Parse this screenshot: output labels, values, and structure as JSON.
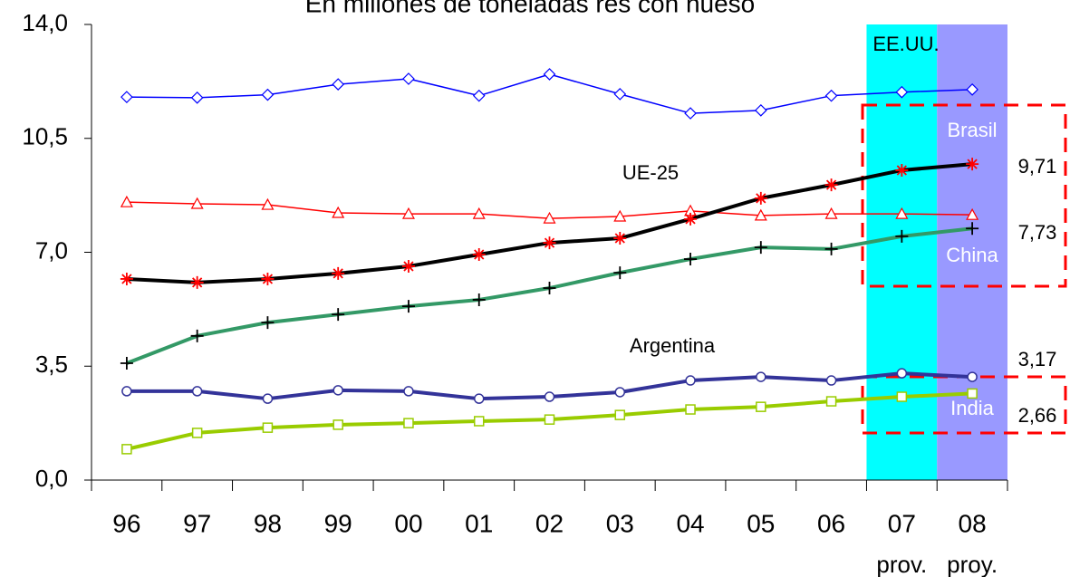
{
  "chart_data": {
    "type": "line",
    "title": "En millones de toneladas res con hueso",
    "categories": [
      "96",
      "97",
      "98",
      "99",
      "00",
      "01",
      "02",
      "03",
      "04",
      "05",
      "06",
      "07",
      "08"
    ],
    "notes": [
      "prov.",
      "proy."
    ],
    "ylim": [
      0,
      14
    ],
    "yticks": [
      {
        "value": 0,
        "label": "0,0"
      },
      {
        "value": 3.5,
        "label": "3,5"
      },
      {
        "value": 7,
        "label": "7,0"
      },
      {
        "value": 10.5,
        "label": "10,5"
      },
      {
        "value": 14,
        "label": "14,0"
      }
    ],
    "bands": [
      {
        "category": 11,
        "color": "#00ffff"
      },
      {
        "category": 12,
        "color": "#9999ff"
      }
    ],
    "series": [
      {
        "name": "EE.UU.",
        "color": "#0000ff",
        "width": 1.5,
        "marker": "diamond",
        "values": [
          11.77,
          11.75,
          11.84,
          12.16,
          12.33,
          11.81,
          12.47,
          11.86,
          11.27,
          11.36,
          11.81,
          11.92,
          12.0
        ]
      },
      {
        "name": "Brasil",
        "color": "#ff0000",
        "width": 1.5,
        "marker": "triangle",
        "values": [
          8.54,
          8.49,
          8.46,
          8.21,
          8.18,
          8.18,
          8.04,
          8.1,
          8.27,
          8.13,
          8.18,
          8.18,
          8.15
        ]
      },
      {
        "name": "UE-25",
        "color": "#000000",
        "width": 4,
        "marker": "star",
        "values": [
          6.18,
          6.07,
          6.18,
          6.35,
          6.57,
          6.93,
          7.29,
          7.43,
          8.02,
          8.66,
          9.07,
          9.52,
          9.71
        ],
        "value_labels": [
          null,
          null,
          null,
          null,
          null,
          null,
          null,
          null,
          null,
          null,
          null,
          null,
          "9,71"
        ]
      },
      {
        "name": "China",
        "color": "#339966",
        "width": 4,
        "marker": "plus",
        "values": [
          3.59,
          4.43,
          4.84,
          5.09,
          5.34,
          5.54,
          5.9,
          6.37,
          6.79,
          7.15,
          7.1,
          7.49,
          7.73
        ],
        "value_labels": [
          null,
          null,
          null,
          null,
          null,
          null,
          null,
          null,
          null,
          null,
          null,
          null,
          "7,73"
        ]
      },
      {
        "name": "Argentina",
        "color": "#333399",
        "width": 4,
        "marker": "circle",
        "values": [
          2.73,
          2.73,
          2.5,
          2.76,
          2.73,
          2.5,
          2.56,
          2.7,
          3.06,
          3.17,
          3.06,
          3.28,
          3.17
        ],
        "value_labels": [
          null,
          null,
          null,
          null,
          null,
          null,
          null,
          null,
          null,
          null,
          null,
          null,
          "3,17"
        ]
      },
      {
        "name": "India",
        "color": "#99cc00",
        "width": 4,
        "marker": "square",
        "values": [
          0.95,
          1.45,
          1.61,
          1.7,
          1.75,
          1.81,
          1.86,
          2.0,
          2.17,
          2.25,
          2.42,
          2.56,
          2.66
        ],
        "value_labels": [
          null,
          null,
          null,
          null,
          null,
          null,
          null,
          null,
          null,
          null,
          null,
          null,
          "2,66"
        ]
      }
    ]
  }
}
